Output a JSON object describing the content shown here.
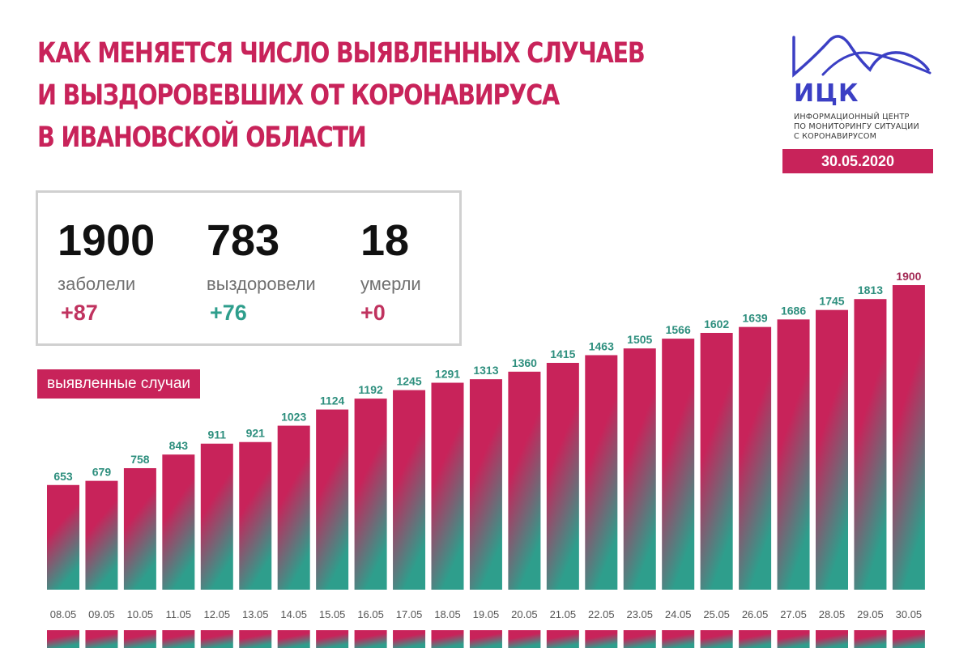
{
  "header": {
    "title_lines": [
      "КАК МЕНЯЕТСЯ ЧИСЛО ВЫЯВЛЕННЫХ СЛУЧАЕВ",
      "И ВЫЗДОРОВЕВШИХ ОТ КОРОНАВИРУСА",
      "В ИВАНОВСКОЙ ОБЛАСТИ"
    ]
  },
  "logo": {
    "abbr": "ИЦК",
    "subtitle_lines": [
      "ИНФОРМАЦИОННЫЙ ЦЕНТР",
      "ПО МОНИТОРИНГУ СИТУАЦИИ",
      "С КОРОНАВИРУСОМ"
    ],
    "date": "30.05.2020"
  },
  "stats": {
    "infected": {
      "value": "1900",
      "label": "заболели",
      "delta": "+87"
    },
    "recovered": {
      "value": "783",
      "label": "выздоровели",
      "delta": "+76"
    },
    "deaths": {
      "value": "18",
      "label": "умерли",
      "delta": "+0"
    }
  },
  "colors": {
    "accent": "#c8235a",
    "teal": "#2e9e8c",
    "logo_blue": "#3b3fc4",
    "delta_infected": "#c0335f",
    "delta_recovered": "#2e9e8c",
    "delta_deaths": "#c0335f",
    "bar_label": "#2e8f7e",
    "bar_label_last": "#a32a55"
  },
  "chart_data": {
    "type": "bar",
    "series_label": "выявленные случаи",
    "categories": [
      "08.05",
      "09.05",
      "10.05",
      "11.05",
      "12.05",
      "13.05",
      "14.05",
      "15.05",
      "16.05",
      "17.05",
      "18.05",
      "19.05",
      "20.05",
      "21.05",
      "22.05",
      "23.05",
      "24.05",
      "25.05",
      "26.05",
      "27.05",
      "28.05",
      "29.05",
      "30.05"
    ],
    "values": [
      653,
      679,
      758,
      843,
      911,
      921,
      1023,
      1124,
      1192,
      1245,
      1291,
      1313,
      1360,
      1415,
      1463,
      1505,
      1566,
      1602,
      1639,
      1686,
      1745,
      1813,
      1900
    ],
    "ylim": [
      0,
      1900
    ],
    "grid": false,
    "title": "",
    "xlabel": "",
    "ylabel": ""
  }
}
